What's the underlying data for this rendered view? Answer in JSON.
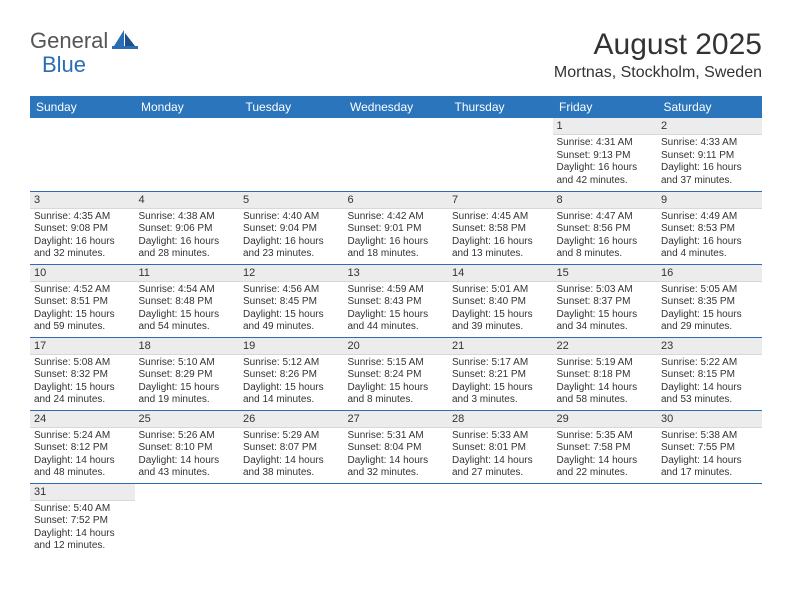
{
  "brand": {
    "general": "General",
    "blue": "Blue"
  },
  "title": "August 2025",
  "location": "Mortnas, Stockholm, Sweden",
  "colors": {
    "header_bg": "#2a75bb",
    "header_text": "#ffffff",
    "accent": "#2a6db5",
    "daynum_bg": "#ececec",
    "text": "#333333",
    "white": "#ffffff"
  },
  "day_headers": [
    "Sunday",
    "Monday",
    "Tuesday",
    "Wednesday",
    "Thursday",
    "Friday",
    "Saturday"
  ],
  "weeks": [
    [
      null,
      null,
      null,
      null,
      null,
      {
        "n": "1",
        "sr": "Sunrise: 4:31 AM",
        "ss": "Sunset: 9:13 PM",
        "dl1": "Daylight: 16 hours",
        "dl2": "and 42 minutes."
      },
      {
        "n": "2",
        "sr": "Sunrise: 4:33 AM",
        "ss": "Sunset: 9:11 PM",
        "dl1": "Daylight: 16 hours",
        "dl2": "and 37 minutes."
      }
    ],
    [
      {
        "n": "3",
        "sr": "Sunrise: 4:35 AM",
        "ss": "Sunset: 9:08 PM",
        "dl1": "Daylight: 16 hours",
        "dl2": "and 32 minutes."
      },
      {
        "n": "4",
        "sr": "Sunrise: 4:38 AM",
        "ss": "Sunset: 9:06 PM",
        "dl1": "Daylight: 16 hours",
        "dl2": "and 28 minutes."
      },
      {
        "n": "5",
        "sr": "Sunrise: 4:40 AM",
        "ss": "Sunset: 9:04 PM",
        "dl1": "Daylight: 16 hours",
        "dl2": "and 23 minutes."
      },
      {
        "n": "6",
        "sr": "Sunrise: 4:42 AM",
        "ss": "Sunset: 9:01 PM",
        "dl1": "Daylight: 16 hours",
        "dl2": "and 18 minutes."
      },
      {
        "n": "7",
        "sr": "Sunrise: 4:45 AM",
        "ss": "Sunset: 8:58 PM",
        "dl1": "Daylight: 16 hours",
        "dl2": "and 13 minutes."
      },
      {
        "n": "8",
        "sr": "Sunrise: 4:47 AM",
        "ss": "Sunset: 8:56 PM",
        "dl1": "Daylight: 16 hours",
        "dl2": "and 8 minutes."
      },
      {
        "n": "9",
        "sr": "Sunrise: 4:49 AM",
        "ss": "Sunset: 8:53 PM",
        "dl1": "Daylight: 16 hours",
        "dl2": "and 4 minutes."
      }
    ],
    [
      {
        "n": "10",
        "sr": "Sunrise: 4:52 AM",
        "ss": "Sunset: 8:51 PM",
        "dl1": "Daylight: 15 hours",
        "dl2": "and 59 minutes."
      },
      {
        "n": "11",
        "sr": "Sunrise: 4:54 AM",
        "ss": "Sunset: 8:48 PM",
        "dl1": "Daylight: 15 hours",
        "dl2": "and 54 minutes."
      },
      {
        "n": "12",
        "sr": "Sunrise: 4:56 AM",
        "ss": "Sunset: 8:45 PM",
        "dl1": "Daylight: 15 hours",
        "dl2": "and 49 minutes."
      },
      {
        "n": "13",
        "sr": "Sunrise: 4:59 AM",
        "ss": "Sunset: 8:43 PM",
        "dl1": "Daylight: 15 hours",
        "dl2": "and 44 minutes."
      },
      {
        "n": "14",
        "sr": "Sunrise: 5:01 AM",
        "ss": "Sunset: 8:40 PM",
        "dl1": "Daylight: 15 hours",
        "dl2": "and 39 minutes."
      },
      {
        "n": "15",
        "sr": "Sunrise: 5:03 AM",
        "ss": "Sunset: 8:37 PM",
        "dl1": "Daylight: 15 hours",
        "dl2": "and 34 minutes."
      },
      {
        "n": "16",
        "sr": "Sunrise: 5:05 AM",
        "ss": "Sunset: 8:35 PM",
        "dl1": "Daylight: 15 hours",
        "dl2": "and 29 minutes."
      }
    ],
    [
      {
        "n": "17",
        "sr": "Sunrise: 5:08 AM",
        "ss": "Sunset: 8:32 PM",
        "dl1": "Daylight: 15 hours",
        "dl2": "and 24 minutes."
      },
      {
        "n": "18",
        "sr": "Sunrise: 5:10 AM",
        "ss": "Sunset: 8:29 PM",
        "dl1": "Daylight: 15 hours",
        "dl2": "and 19 minutes."
      },
      {
        "n": "19",
        "sr": "Sunrise: 5:12 AM",
        "ss": "Sunset: 8:26 PM",
        "dl1": "Daylight: 15 hours",
        "dl2": "and 14 minutes."
      },
      {
        "n": "20",
        "sr": "Sunrise: 5:15 AM",
        "ss": "Sunset: 8:24 PM",
        "dl1": "Daylight: 15 hours",
        "dl2": "and 8 minutes."
      },
      {
        "n": "21",
        "sr": "Sunrise: 5:17 AM",
        "ss": "Sunset: 8:21 PM",
        "dl1": "Daylight: 15 hours",
        "dl2": "and 3 minutes."
      },
      {
        "n": "22",
        "sr": "Sunrise: 5:19 AM",
        "ss": "Sunset: 8:18 PM",
        "dl1": "Daylight: 14 hours",
        "dl2": "and 58 minutes."
      },
      {
        "n": "23",
        "sr": "Sunrise: 5:22 AM",
        "ss": "Sunset: 8:15 PM",
        "dl1": "Daylight: 14 hours",
        "dl2": "and 53 minutes."
      }
    ],
    [
      {
        "n": "24",
        "sr": "Sunrise: 5:24 AM",
        "ss": "Sunset: 8:12 PM",
        "dl1": "Daylight: 14 hours",
        "dl2": "and 48 minutes."
      },
      {
        "n": "25",
        "sr": "Sunrise: 5:26 AM",
        "ss": "Sunset: 8:10 PM",
        "dl1": "Daylight: 14 hours",
        "dl2": "and 43 minutes."
      },
      {
        "n": "26",
        "sr": "Sunrise: 5:29 AM",
        "ss": "Sunset: 8:07 PM",
        "dl1": "Daylight: 14 hours",
        "dl2": "and 38 minutes."
      },
      {
        "n": "27",
        "sr": "Sunrise: 5:31 AM",
        "ss": "Sunset: 8:04 PM",
        "dl1": "Daylight: 14 hours",
        "dl2": "and 32 minutes."
      },
      {
        "n": "28",
        "sr": "Sunrise: 5:33 AM",
        "ss": "Sunset: 8:01 PM",
        "dl1": "Daylight: 14 hours",
        "dl2": "and 27 minutes."
      },
      {
        "n": "29",
        "sr": "Sunrise: 5:35 AM",
        "ss": "Sunset: 7:58 PM",
        "dl1": "Daylight: 14 hours",
        "dl2": "and 22 minutes."
      },
      {
        "n": "30",
        "sr": "Sunrise: 5:38 AM",
        "ss": "Sunset: 7:55 PM",
        "dl1": "Daylight: 14 hours",
        "dl2": "and 17 minutes."
      }
    ],
    [
      {
        "n": "31",
        "sr": "Sunrise: 5:40 AM",
        "ss": "Sunset: 7:52 PM",
        "dl1": "Daylight: 14 hours",
        "dl2": "and 12 minutes."
      },
      null,
      null,
      null,
      null,
      null,
      null
    ]
  ]
}
